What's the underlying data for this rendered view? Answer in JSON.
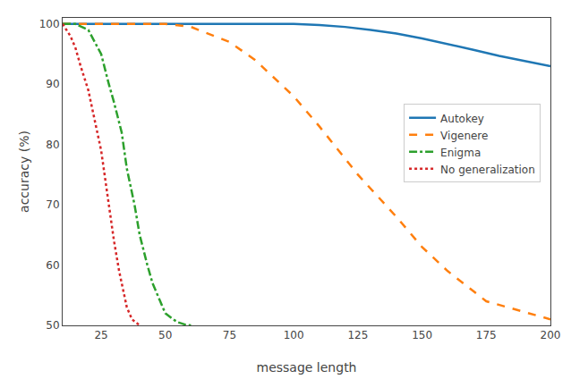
{
  "chart_data": {
    "type": "line",
    "xlabel": "message length",
    "ylabel": "accuracy (%)",
    "xlim": [
      10,
      200
    ],
    "ylim": [
      50,
      101
    ],
    "xticks": [
      25,
      50,
      75,
      100,
      125,
      150,
      175,
      200
    ],
    "yticks": [
      50,
      60,
      70,
      80,
      90,
      100
    ],
    "grid": false,
    "legend": "upper right",
    "series": [
      {
        "name": "Autokey",
        "color": "#1f77b4",
        "line_style": "solid",
        "x": [
          10,
          25,
          50,
          75,
          100,
          110,
          120,
          130,
          140,
          150,
          160,
          170,
          180,
          190,
          200
        ],
        "values": [
          100,
          100,
          100,
          100,
          100,
          99.8,
          99.5,
          99.0,
          98.4,
          97.6,
          96.7,
          95.7,
          94.7,
          93.8,
          93.0
        ]
      },
      {
        "name": "Vigenere",
        "color": "#ff7f0e",
        "line_style": "dashed",
        "x": [
          10,
          25,
          40,
          50,
          60,
          75,
          85,
          100,
          110,
          125,
          140,
          150,
          160,
          175,
          200
        ],
        "values": [
          100,
          100,
          100,
          100,
          99.5,
          97,
          94,
          88,
          83,
          75,
          68,
          63,
          59,
          54,
          51
        ]
      },
      {
        "name": "Enigma",
        "color": "#2ca02c",
        "line_style": "dashdot",
        "x": [
          10,
          15,
          20,
          25,
          28,
          30,
          33,
          35,
          38,
          40,
          43,
          45,
          48,
          50,
          53,
          55,
          58,
          60
        ],
        "values": [
          100,
          100,
          99,
          95,
          90,
          87,
          82,
          76,
          70,
          65,
          60,
          57,
          54,
          52,
          51,
          50.5,
          50.1,
          50
        ]
      },
      {
        "name": "No generalization",
        "color": "#d62728",
        "line_style": "dotted",
        "x": [
          10,
          13,
          15,
          17,
          20,
          22,
          25,
          27,
          30,
          32,
          35,
          37,
          40
        ],
        "values": [
          100,
          98,
          96,
          93,
          89,
          85,
          79,
          73,
          64,
          59,
          53,
          51,
          50
        ]
      }
    ]
  }
}
